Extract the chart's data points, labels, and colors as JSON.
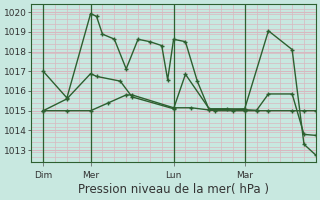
{
  "bg_color": "#c8e8e0",
  "grid_color": "#d8b8c0",
  "line_color": "#2d6030",
  "title": "Pression niveau de la mer( hPa )",
  "ylabel_ticks": [
    1013,
    1014,
    1015,
    1016,
    1017,
    1018,
    1019,
    1020
  ],
  "ylim": [
    1012.4,
    1020.4
  ],
  "xlim": [
    0,
    96
  ],
  "day_positions": [
    4,
    20,
    48,
    72
  ],
  "day_labels": [
    "Dim",
    "Mer",
    "Lun",
    "Mar"
  ],
  "vline_positions": [
    4,
    20,
    48,
    72
  ],
  "series1_x": [
    4,
    12,
    20,
    22,
    24,
    28,
    32,
    36,
    40,
    44,
    46,
    48,
    52,
    56,
    60,
    72,
    80,
    88,
    92,
    96
  ],
  "series1_y": [
    1017.0,
    1015.65,
    1019.92,
    1019.78,
    1018.88,
    1018.63,
    1017.12,
    1018.62,
    1018.5,
    1018.3,
    1016.57,
    1018.62,
    1018.5,
    1016.5,
    1015.05,
    1015.1,
    1019.05,
    1018.1,
    1013.3,
    1012.75
  ],
  "series2_x": [
    4,
    12,
    20,
    22,
    30,
    34,
    48,
    52,
    60,
    66,
    72,
    76,
    80,
    88,
    92,
    96
  ],
  "series2_y": [
    1015.0,
    1015.6,
    1016.88,
    1016.74,
    1016.5,
    1015.7,
    1015.1,
    1016.85,
    1015.1,
    1015.1,
    1015.05,
    1015.02,
    1015.85,
    1015.85,
    1013.8,
    1013.75
  ],
  "series3_x": [
    4,
    12,
    20,
    26,
    32,
    34,
    48,
    54,
    62,
    68,
    72,
    76,
    80,
    88,
    92,
    96
  ],
  "series3_y": [
    1015.0,
    1015.0,
    1015.0,
    1015.4,
    1015.8,
    1015.8,
    1015.15,
    1015.15,
    1015.0,
    1015.0,
    1015.0,
    1015.0,
    1015.0,
    1015.0,
    1015.0,
    1015.0
  ],
  "tick_fontsize": 6.5,
  "label_fontsize": 8.5
}
